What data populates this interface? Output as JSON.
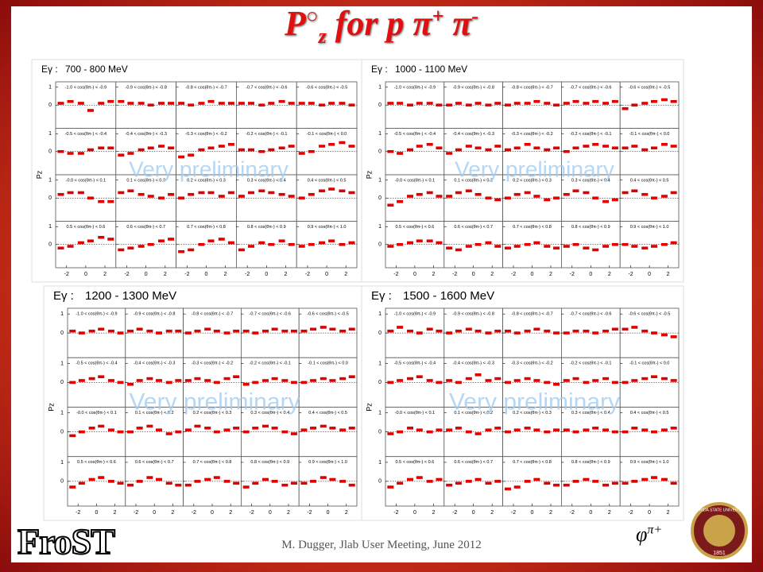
{
  "title": {
    "p": "P",
    "circ": "○",
    "sub": "z",
    "rest": " for p π",
    "sup1": "+",
    "mid": " π",
    "sup2": "-"
  },
  "footer": "M. Dugger, Jlab User Meeting, June 2012",
  "logo": "FroST",
  "corner": {
    "phi": "φ",
    "sup": "π+"
  },
  "seal": {
    "name": "FLORIDA STATE UNIVERSITY",
    "year": "1851"
  },
  "energy_prefix": "Eγ :",
  "watermark": "Very preliminary",
  "y_label": "Pz",
  "bins": [
    "-1.0 < cos(θπ-) < -0.9",
    "-0.9 < cos(θπ-) < -0.8",
    "-0.8 < cos(θπ-) < -0.7",
    "-0.7 < cos(θπ-) < -0.6",
    "-0.6 < cos(θπ-) < -0.5",
    "-0.5 < cos(θπ-) < -0.4",
    "-0.4 < cos(θπ-) < -0.3",
    "-0.3 < cos(θπ-) < -0.2",
    "-0.2 < cos(θπ-) < -0.1",
    "-0.1 < cos(θπ-) < 0.0",
    "-0.0 < cos(θπ-) < 0.1",
    "0.1 < cos(θπ-) < 0.2",
    "0.2 < cos(θπ-) < 0.3",
    "0.3 < cos(θπ-) < 0.4",
    "0.4 < cos(θπ-) < 0.5",
    "0.5 < cos(θπ-) < 0.6",
    "0.6 < cos(θπ-) < 0.7",
    "0.7 < cos(θπ-) < 0.8",
    "0.8 < cos(θπ-) < 0.9",
    "0.9 < cos(θπ-) < 1.0"
  ],
  "phi": [
    -2.6,
    -1.6,
    -0.5,
    0.5,
    1.6,
    2.6
  ],
  "xlim": [
    -3.14,
    3.14
  ],
  "xticks": [
    -2,
    0,
    2
  ],
  "ylim": [
    -1.3,
    1.3
  ],
  "yticks": [
    1,
    0
  ],
  "color": "#e00000",
  "panels": [
    {
      "energy": "700 - 800 MeV",
      "values": [
        [
          0.1,
          0.2,
          0.1,
          -0.3,
          0.1,
          0.2
        ],
        [
          0.2,
          0.1,
          0.1,
          0.0,
          0.1,
          0.1
        ],
        [
          0.1,
          0.0,
          0.1,
          0.2,
          0.1,
          0.1
        ],
        [
          0.1,
          0.1,
          0.0,
          0.1,
          0.2,
          0.1
        ],
        [
          0.1,
          0.1,
          0.0,
          0.1,
          0.1,
          0.0
        ],
        [
          0.0,
          -0.1,
          -0.1,
          0.1,
          0.2,
          0.2
        ],
        [
          -0.2,
          -0.1,
          0.1,
          0.2,
          0.3,
          0.2
        ],
        [
          -0.3,
          -0.2,
          0.1,
          0.2,
          0.3,
          0.4
        ],
        [
          0.1,
          0.1,
          0.0,
          0.1,
          0.2,
          0.3
        ],
        [
          -0.1,
          0.0,
          0.3,
          0.4,
          0.5,
          0.3
        ],
        [
          0.2,
          0.3,
          0.3,
          0.0,
          -0.2,
          -0.2
        ],
        [
          0.3,
          0.4,
          0.2,
          0.1,
          0.0,
          0.2
        ],
        [
          0.0,
          0.2,
          0.3,
          0.3,
          0.1,
          0.3
        ],
        [
          0.1,
          0.3,
          0.4,
          0.3,
          0.2,
          0.1
        ],
        [
          0.0,
          0.2,
          0.4,
          0.5,
          0.4,
          0.3
        ],
        [
          -0.2,
          -0.1,
          0.1,
          0.2,
          0.4,
          0.3
        ],
        [
          -0.3,
          -0.2,
          -0.1,
          0.0,
          0.2,
          0.3
        ],
        [
          -0.4,
          -0.3,
          0.0,
          0.2,
          0.3,
          0.1
        ],
        [
          -0.3,
          -0.1,
          0.1,
          0.0,
          0.2,
          0.0
        ],
        [
          -0.1,
          0.0,
          0.1,
          0.2,
          0.0,
          0.1
        ]
      ]
    },
    {
      "energy": "1000 - 1100 MeV",
      "values": [
        [
          0.1,
          0.1,
          0.0,
          0.1,
          0.1,
          0.0
        ],
        [
          0.0,
          0.1,
          0.0,
          0.1,
          0.0,
          0.1
        ],
        [
          0.0,
          0.1,
          0.1,
          0.2,
          0.1,
          0.0
        ],
        [
          0.1,
          0.2,
          0.1,
          0.2,
          0.1,
          0.2
        ],
        [
          -0.2,
          0.0,
          0.1,
          0.2,
          0.3,
          0.2
        ],
        [
          0.0,
          -0.1,
          0.1,
          0.3,
          0.4,
          0.2
        ],
        [
          -0.1,
          0.1,
          0.3,
          0.2,
          0.1,
          0.3
        ],
        [
          0.1,
          0.2,
          0.4,
          0.2,
          0.1,
          0.2
        ],
        [
          0.0,
          0.2,
          0.3,
          0.4,
          0.3,
          0.2
        ],
        [
          0.2,
          0.3,
          0.1,
          0.2,
          0.4,
          0.3
        ],
        [
          -0.4,
          -0.2,
          0.1,
          0.2,
          0.3,
          0.1
        ],
        [
          0.1,
          0.3,
          0.4,
          0.2,
          0.0,
          -0.1
        ],
        [
          0.0,
          0.2,
          0.3,
          0.1,
          -0.1,
          0.0
        ],
        [
          0.2,
          0.4,
          0.3,
          0.0,
          -0.2,
          -0.1
        ],
        [
          0.3,
          0.4,
          0.2,
          0.0,
          0.1,
          0.3
        ],
        [
          -0.1,
          0.0,
          0.1,
          0.2,
          0.2,
          0.1
        ],
        [
          -0.2,
          -0.3,
          -0.1,
          0.0,
          0.1,
          -0.1
        ],
        [
          -0.2,
          -0.1,
          0.0,
          0.1,
          -0.1,
          -0.2
        ],
        [
          -0.1,
          0.0,
          -0.2,
          -0.3,
          -0.1,
          0.0
        ],
        [
          0.0,
          -0.1,
          -0.2,
          -0.1,
          0.0,
          0.1
        ]
      ]
    },
    {
      "energy": "1200 - 1300 MeV",
      "values": [
        [
          0.1,
          0.0,
          0.1,
          0.2,
          0.1,
          0.0
        ],
        [
          0.1,
          0.2,
          0.1,
          0.0,
          0.1,
          0.1
        ],
        [
          0.0,
          0.1,
          0.2,
          0.1,
          0.0,
          0.1
        ],
        [
          0.1,
          0.0,
          0.1,
          0.2,
          0.1,
          0.1
        ],
        [
          0.1,
          0.2,
          0.3,
          0.2,
          0.1,
          0.2
        ],
        [
          0.0,
          0.1,
          0.2,
          0.3,
          0.1,
          0.0
        ],
        [
          -0.1,
          0.1,
          0.2,
          0.1,
          0.0,
          0.1
        ],
        [
          0.1,
          0.2,
          0.1,
          0.0,
          0.2,
          0.3
        ],
        [
          -0.1,
          0.0,
          0.1,
          0.2,
          0.1,
          0.0
        ],
        [
          0.0,
          0.1,
          0.2,
          0.1,
          0.2,
          0.3
        ],
        [
          -0.2,
          0.0,
          0.2,
          0.3,
          0.1,
          0.0
        ],
        [
          0.0,
          0.2,
          0.3,
          0.1,
          -0.1,
          0.0
        ],
        [
          0.1,
          0.3,
          0.2,
          0.0,
          0.1,
          0.2
        ],
        [
          0.0,
          0.2,
          0.3,
          0.2,
          0.0,
          -0.1
        ],
        [
          0.1,
          0.2,
          0.3,
          0.2,
          0.1,
          0.2
        ],
        [
          -0.3,
          -0.1,
          0.1,
          0.2,
          0.0,
          -0.1
        ],
        [
          -0.2,
          0.0,
          0.2,
          0.1,
          -0.1,
          -0.2
        ],
        [
          -0.2,
          0.0,
          0.1,
          0.2,
          0.0,
          -0.1
        ],
        [
          -0.3,
          -0.1,
          0.1,
          0.0,
          -0.2,
          -0.1
        ],
        [
          -0.1,
          0.0,
          0.2,
          0.1,
          0.0,
          -0.2
        ]
      ]
    },
    {
      "energy": "1500 - 1600 MeV",
      "values": [
        [
          0.1,
          0.3,
          0.1,
          0.0,
          0.2,
          0.1
        ],
        [
          0.0,
          0.1,
          0.2,
          0.1,
          0.0,
          0.1
        ],
        [
          0.1,
          0.0,
          0.1,
          0.2,
          0.1,
          0.0
        ],
        [
          0.0,
          0.1,
          0.1,
          0.0,
          0.1,
          0.2
        ],
        [
          0.2,
          0.3,
          0.1,
          0.0,
          -0.1,
          -0.2
        ],
        [
          0.0,
          0.1,
          0.2,
          0.3,
          0.1,
          0.0
        ],
        [
          0.1,
          0.0,
          0.2,
          0.4,
          0.1,
          0.2
        ],
        [
          0.0,
          0.1,
          0.2,
          0.1,
          0.0,
          -0.1
        ],
        [
          0.1,
          0.2,
          0.0,
          0.1,
          0.2,
          0.0
        ],
        [
          0.0,
          0.1,
          0.2,
          0.3,
          0.2,
          0.1
        ],
        [
          -0.1,
          0.0,
          0.2,
          0.1,
          0.0,
          0.1
        ],
        [
          0.1,
          0.2,
          0.0,
          -0.1,
          0.1,
          0.2
        ],
        [
          0.0,
          0.1,
          0.2,
          0.1,
          0.0,
          0.1
        ],
        [
          0.1,
          0.0,
          0.1,
          0.2,
          0.1,
          0.0
        ],
        [
          0.0,
          0.2,
          0.1,
          0.0,
          0.1,
          0.2
        ],
        [
          -0.3,
          -0.1,
          0.1,
          0.2,
          0.0,
          0.1
        ],
        [
          -0.2,
          -0.1,
          0.0,
          0.1,
          -0.1,
          0.0
        ],
        [
          -0.4,
          -0.3,
          0.0,
          0.1,
          -0.1,
          -0.2
        ],
        [
          -0.2,
          0.0,
          0.1,
          0.0,
          -0.2,
          -0.1
        ],
        [
          -0.1,
          0.0,
          0.1,
          0.2,
          0.1,
          -0.1
        ]
      ]
    }
  ]
}
